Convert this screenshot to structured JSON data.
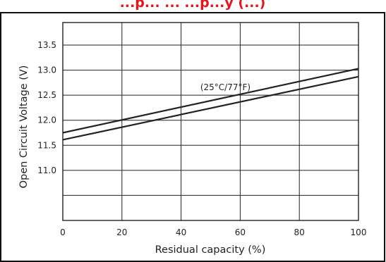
{
  "chart_data": {
    "type": "line",
    "title": "...p... ... ...p...y (...)",
    "xlabel": "Residual capacity (%)",
    "ylabel": "Open Circuit Voltage (V)",
    "xlim": [
      0,
      100
    ],
    "ylim": [
      10.0,
      13.95
    ],
    "x_ticks": [
      0,
      20,
      40,
      60,
      80,
      100
    ],
    "x_tick_labels": [
      "0",
      "20",
      "40",
      "60",
      "80",
      "100"
    ],
    "y_ticks": [
      11.0,
      11.5,
      12.0,
      12.5,
      13.0,
      13.5
    ],
    "y_tick_labels": [
      "11.0",
      "11.5",
      "12.0",
      "12.5",
      "13.0",
      "13.5"
    ],
    "y_gridlines": [
      10.5,
      11.0,
      11.5,
      12.0,
      12.5,
      13.0,
      13.5
    ],
    "grid": true,
    "annotation": {
      "text": "(25°C/77°F)",
      "x": 55,
      "y": 12.6
    },
    "series": [
      {
        "x": [
          0,
          100
        ],
        "y": [
          11.75,
          13.03
        ]
      },
      {
        "x": [
          0,
          100
        ],
        "y": [
          11.61,
          12.87
        ]
      }
    ],
    "colors": {
      "line": "#222222",
      "grid": "#222222",
      "frame": "#111111",
      "title": "#e8141b"
    }
  }
}
